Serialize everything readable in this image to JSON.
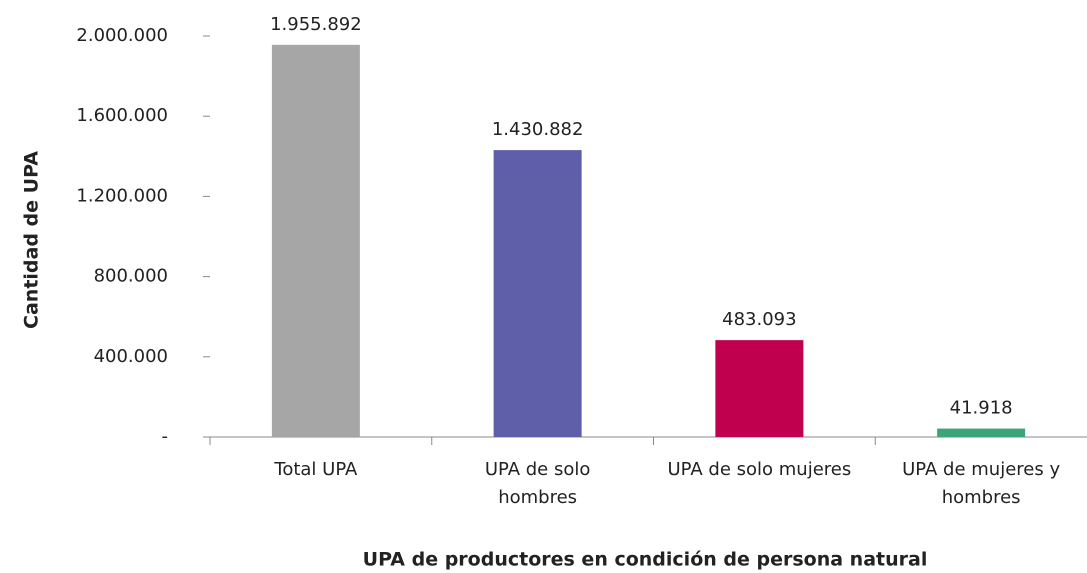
{
  "chart_data": {
    "type": "bar",
    "y_label": "Cantidad de UPA",
    "x_label": "UPA de productores  en condición de persona natural",
    "categories": [
      "Total UPA",
      "UPA de solo hombres",
      "UPA de solo mujeres",
      "UPA de mujeres y hombres"
    ],
    "values": [
      1955892,
      1430882,
      483093,
      41918
    ],
    "value_labels": [
      "1.955.892",
      "1.430.882",
      "483.093",
      "41.918"
    ],
    "colors": [
      "#a6a6a6",
      "#5f5ea8",
      "#c0004f",
      "#3aa579"
    ],
    "ylim": [
      0,
      2000000
    ],
    "yticks": [
      {
        "value": 0,
        "label": "-"
      },
      {
        "value": 400000,
        "label": "400.000"
      },
      {
        "value": 800000,
        "label": "800.000"
      },
      {
        "value": 1200000,
        "label": "1.200.000"
      },
      {
        "value": 1600000,
        "label": "1.600.000"
      },
      {
        "value": 2000000,
        "label": "2.000.000"
      }
    ],
    "grid": false
  }
}
